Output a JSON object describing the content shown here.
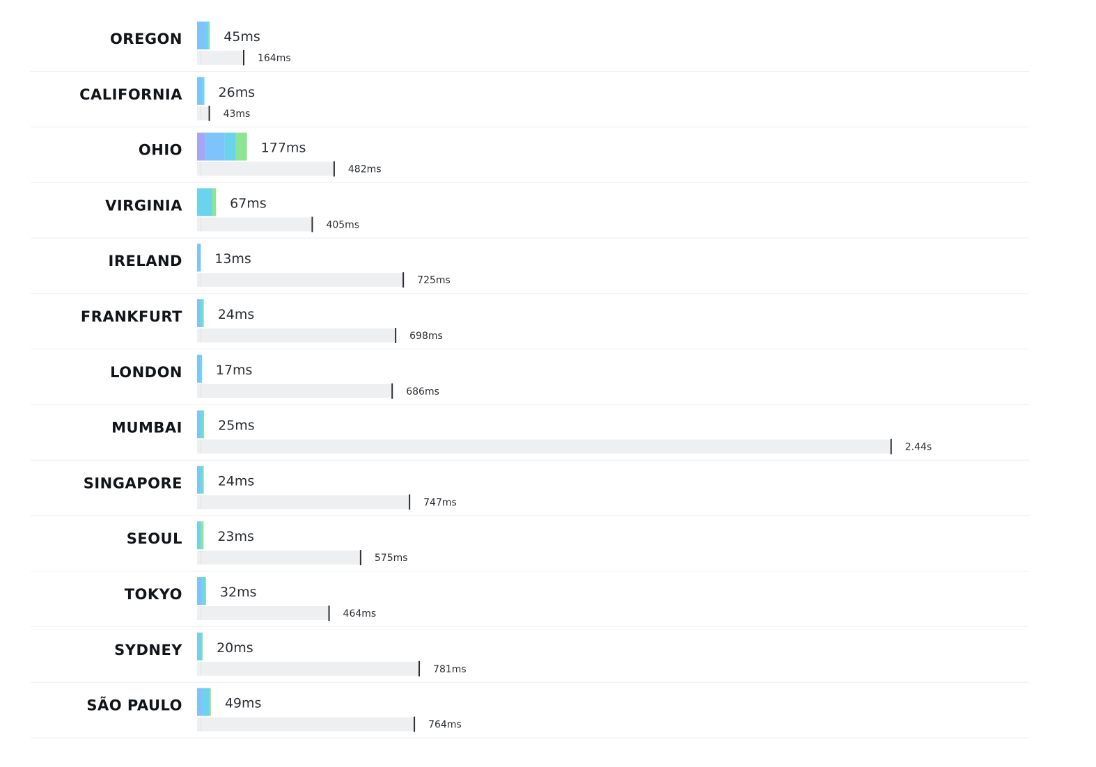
{
  "chart_data": {
    "type": "bar",
    "colors": {
      "segments": [
        "#a5a6f6",
        "#7ec3fb",
        "#6bd3ec",
        "#8ee492"
      ],
      "track": "#eeeff1",
      "marker": "#2b2e33",
      "divider": "#eceef0"
    },
    "rows": [
      {
        "region": "OREGON",
        "value_ms": 45,
        "value_label": "45ms",
        "total_ms": 164,
        "total_label": "164ms",
        "segments_ms": [
          0,
          31,
          10,
          4
        ]
      },
      {
        "region": "CALIFORNIA",
        "value_ms": 26,
        "value_label": "26ms",
        "total_ms": 43,
        "total_label": "43ms",
        "segments_ms": [
          0,
          18,
          8,
          0
        ]
      },
      {
        "region": "OHIO",
        "value_ms": 177,
        "value_label": "177ms",
        "total_ms": 482,
        "total_label": "482ms",
        "segments_ms": [
          29,
          69,
          40,
          39
        ]
      },
      {
        "region": "VIRGINIA",
        "value_ms": 67,
        "value_label": "67ms",
        "total_ms": 405,
        "total_label": "405ms",
        "segments_ms": [
          0,
          0,
          53,
          14
        ]
      },
      {
        "region": "IRELAND",
        "value_ms": 13,
        "value_label": "13ms",
        "total_ms": 725,
        "total_label": "725ms",
        "segments_ms": [
          0,
          10,
          3,
          0
        ]
      },
      {
        "region": "FRANKFURT",
        "value_ms": 24,
        "value_label": "24ms",
        "total_ms": 698,
        "total_label": "698ms",
        "segments_ms": [
          0,
          10,
          10,
          4
        ]
      },
      {
        "region": "LONDON",
        "value_ms": 17,
        "value_label": "17ms",
        "total_ms": 686,
        "total_label": "686ms",
        "segments_ms": [
          0,
          14,
          3,
          0
        ]
      },
      {
        "region": "MUMBAI",
        "value_ms": 25,
        "value_label": "25ms",
        "total_ms": 2440,
        "total_label": "2.44s",
        "segments_ms": [
          0,
          10,
          10,
          5
        ]
      },
      {
        "region": "SINGAPORE",
        "value_ms": 24,
        "value_label": "24ms",
        "total_ms": 747,
        "total_label": "747ms",
        "segments_ms": [
          0,
          10,
          10,
          4
        ]
      },
      {
        "region": "SEOUL",
        "value_ms": 23,
        "value_label": "23ms",
        "total_ms": 575,
        "total_label": "575ms",
        "segments_ms": [
          0,
          0,
          14,
          9
        ]
      },
      {
        "region": "TOKYO",
        "value_ms": 32,
        "value_label": "32ms",
        "total_ms": 464,
        "total_label": "464ms",
        "segments_ms": [
          0,
          18,
          10,
          4
        ]
      },
      {
        "region": "SYDNEY",
        "value_ms": 20,
        "value_label": "20ms",
        "total_ms": 781,
        "total_label": "781ms",
        "segments_ms": [
          0,
          6,
          10,
          4
        ]
      },
      {
        "region": "SÃO PAULO",
        "value_ms": 49,
        "value_label": "49ms",
        "total_ms": 764,
        "total_label": "764ms",
        "segments_ms": [
          0,
          22,
          23,
          4
        ]
      }
    ]
  }
}
